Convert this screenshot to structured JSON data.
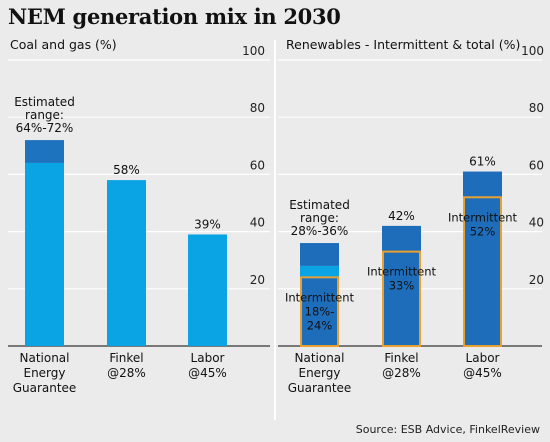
{
  "title": "NEM generation mix in 2030",
  "source": "Source: ESB Advice, FinkelReview",
  "colors": {
    "range_band": "#1e73bf",
    "coal_gas": "#0aa3e4",
    "renewables": "#1e6dbb",
    "renewables_range_base": "#0aa3e4",
    "intermittent_outline": "#e8a030",
    "background": "#ebebeb",
    "grid": "#ffffff"
  },
  "chart_data": [
    {
      "type": "bar",
      "title": "Coal and gas (%)",
      "ylim": [
        0,
        100
      ],
      "yticks": [
        20,
        40,
        60,
        80,
        100
      ],
      "grid": true,
      "categories": [
        "National Energy Guarantee",
        "Finkel @28%",
        "Labor @45%"
      ],
      "category_lines": [
        [
          "National",
          "Energy",
          "Guarantee"
        ],
        [
          "Finkel",
          "@28%"
        ],
        [
          "Labor",
          "@45%"
        ]
      ],
      "values": [
        64,
        58,
        39
      ],
      "range": [
        {
          "category": "National Energy Guarantee",
          "low": 64,
          "high": 72
        }
      ],
      "value_labels": [
        "",
        "58%",
        "39%"
      ],
      "annotations": [
        {
          "category": "National Energy Guarantee",
          "lines": [
            "Estimated",
            "range:",
            "64%-72%"
          ]
        }
      ]
    },
    {
      "type": "bar",
      "title": "Renewables - Intermittent & total (%)",
      "ylim": [
        0,
        100
      ],
      "yticks": [
        20,
        40,
        60,
        80,
        100
      ],
      "grid": true,
      "categories": [
        "National Energy Guarantee",
        "Finkel @28%",
        "Labor @45%"
      ],
      "category_lines": [
        [
          "National",
          "Energy",
          "Guarantee"
        ],
        [
          "Finkel",
          "@28%"
        ],
        [
          "Labor",
          "@45%"
        ]
      ],
      "series": [
        {
          "values": [
            28,
            42,
            61
          ],
          "range": [
            {
              "category": "National Energy Guarantee",
              "low": 28,
              "high": 36
            }
          ]
        },
        {
          "values": [
            24,
            33,
            52
          ],
          "range": [
            {
              "category": "National Energy Guarantee",
              "low": 18,
              "high": 24
            }
          ]
        }
      ],
      "value_labels": [
        "",
        "42%",
        "61%"
      ],
      "intermittent_labels": [
        [
          "Intermittent",
          "18%-",
          "24%"
        ],
        [
          "Intermittent",
          "33%"
        ],
        [
          "Intermittent",
          "52%"
        ]
      ],
      "annotations": [
        {
          "category": "National Energy Guarantee",
          "lines": [
            "Estimated",
            "range:",
            "28%-36%"
          ]
        }
      ]
    }
  ]
}
